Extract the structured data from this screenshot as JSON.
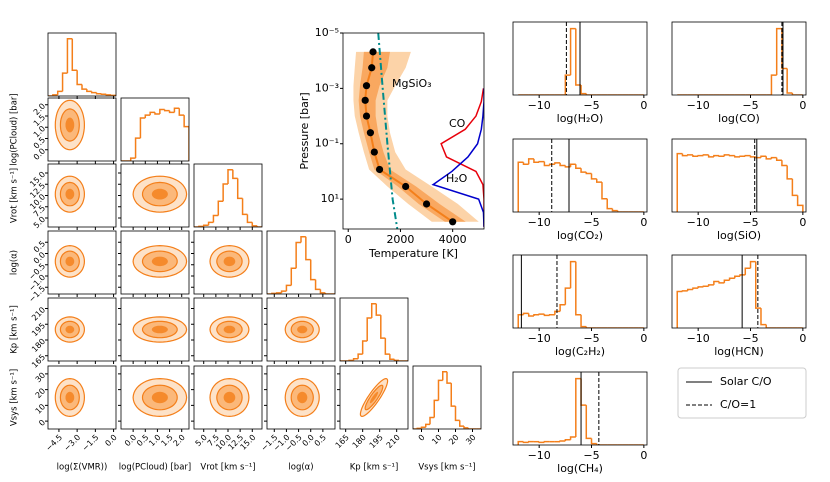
{
  "chart_data": [
    {
      "type": "corner",
      "hist_ylim": [
        0,
        110
      ],
      "contour_levels": [
        2.0,
        1.3,
        0.6
      ],
      "contour_colors": [
        "#fde2c8",
        "#fbb87a",
        "#f58a2c"
      ],
      "color": "#f47f1a",
      "correlations": [
        {
          "params": [
            4,
            5
          ],
          "value": 0.88
        }
      ],
      "params": [
        {
          "label": "log(Σ(VMR))",
          "lim": [
            -5.4,
            0.2
          ],
          "center": -3.6,
          "spread": 0.6,
          "ticks": [
            {
              "value": -4.5,
              "label": "−4.5"
            },
            {
              "value": -3.0,
              "label": "−3.0"
            },
            {
              "value": -1.5,
              "label": "−1.5"
            },
            {
              "value": 0.0,
              "label": "0.0"
            }
          ],
          "bins": [
            -5.4,
            -5.0,
            -4.6,
            -4.2,
            -3.8,
            -3.4,
            -3.0,
            -2.6,
            -2.2,
            -1.8,
            -1.4,
            -1.0,
            -0.6,
            -0.2,
            0.2
          ],
          "counts": [
            0,
            2,
            8,
            40,
            100,
            45,
            20,
            12,
            8,
            6,
            4,
            3,
            2,
            1
          ]
        },
        {
          "label": "log(PCloud) [bar]",
          "lim": [
            -0.5,
            2.3
          ],
          "center": 1.1,
          "spread": 0.55,
          "ticks": [
            {
              "value": 0.0,
              "label": "0.0"
            },
            {
              "value": 0.5,
              "label": "0.5"
            },
            {
              "value": 1.0,
              "label": "1.0"
            },
            {
              "value": 1.5,
              "label": "1.5"
            },
            {
              "value": 2.0,
              "label": "2.0"
            }
          ],
          "bins": [
            -0.5,
            -0.3,
            -0.1,
            0.1,
            0.3,
            0.5,
            0.7,
            0.9,
            1.1,
            1.3,
            1.5,
            1.7,
            1.9,
            2.1,
            2.3
          ],
          "counts": [
            0,
            0,
            5,
            40,
            75,
            80,
            85,
            82,
            90,
            88,
            85,
            92,
            80,
            60
          ]
        },
        {
          "label": "Vrot [km s⁻¹]",
          "lim": [
            3,
            17
          ],
          "center": 10.3,
          "spread": 2,
          "ticks": [
            {
              "value": 5.0,
              "label": "5.0"
            },
            {
              "value": 7.5,
              "label": "7.5"
            },
            {
              "value": 10.0,
              "label": "10.0"
            },
            {
              "value": 12.5,
              "label": "12.5"
            },
            {
              "value": 15.0,
              "label": "15.0"
            }
          ],
          "bins": [
            3,
            4,
            5,
            6,
            7,
            8,
            9,
            10,
            11,
            12,
            13,
            14,
            15,
            16,
            17
          ],
          "counts": [
            0,
            1,
            3,
            8,
            20,
            45,
            75,
            100,
            85,
            50,
            22,
            8,
            2,
            0
          ]
        },
        {
          "label": "log(α)",
          "lim": [
            -1.8,
            1.0
          ],
          "center": -0.35,
          "spread": 0.35,
          "ticks": [
            {
              "value": -1.5,
              "label": "−1.5"
            },
            {
              "value": -1.0,
              "label": "−1.0"
            },
            {
              "value": -0.5,
              "label": "−0.5"
            },
            {
              "value": 0.0,
              "label": "0.0"
            },
            {
              "value": 0.5,
              "label": "0.5"
            }
          ],
          "bins": [
            -1.8,
            -1.6,
            -1.4,
            -1.2,
            -1.0,
            -0.8,
            -0.6,
            -0.4,
            -0.2,
            0.0,
            0.2,
            0.4,
            0.6,
            0.8,
            1.0
          ],
          "counts": [
            0,
            1,
            2,
            5,
            15,
            45,
            90,
            100,
            60,
            25,
            8,
            2,
            0,
            0
          ]
        },
        {
          "label": "Kp [km s⁻¹]",
          "lim": [
            160,
            220
          ],
          "center": 190,
          "spread": 6,
          "ticks": [
            165,
            180,
            195,
            210
          ],
          "bins": [
            160,
            164,
            168,
            172,
            176,
            180,
            184,
            188,
            192,
            196,
            200,
            204,
            208,
            212,
            216,
            220
          ],
          "counts": [
            0,
            0,
            1,
            4,
            12,
            35,
            75,
            100,
            80,
            40,
            12,
            3,
            1,
            0,
            0
          ]
        },
        {
          "label": "Vsys [km s⁻¹]",
          "lim": [
            -5,
            35
          ],
          "center": 15,
          "spread": 6,
          "ticks": [
            0,
            10,
            20,
            30
          ],
          "bins": [
            -5,
            -2.5,
            0,
            2.5,
            5,
            7.5,
            10,
            12.5,
            15,
            17.5,
            20,
            22.5,
            25,
            27.5,
            30,
            32.5,
            35
          ],
          "counts": [
            0,
            1,
            3,
            8,
            20,
            50,
            85,
            100,
            80,
            40,
            15,
            5,
            2,
            0,
            0,
            0
          ]
        }
      ]
    },
    {
      "type": "profile",
      "xlabel": "Temperature [K]",
      "ylabel": "Pressure [bar]",
      "xlim": [
        -200,
        5200
      ],
      "xticks": [
        0,
        2000,
        4000
      ],
      "ylim": [
        1e-05,
        120
      ],
      "log_y": true,
      "yticks": [
        {
          "value": 1e-05,
          "label": "10⁻⁵"
        },
        {
          "value": 0.001,
          "label": "10⁻³"
        },
        {
          "value": 0.1,
          "label": "10⁻¹"
        },
        {
          "value": 10,
          "label": "10¹"
        }
      ],
      "pressure": [
        4.8e-05,
        0.00018,
        0.0008,
        0.0027,
        0.01,
        0.04,
        0.2,
        0.85,
        3.5,
        15,
        66
      ],
      "temperature": [
        950,
        900,
        700,
        650,
        700,
        850,
        1000,
        1200,
        2200,
        3000,
        4000
      ],
      "color": "#f47f1a",
      "bands": [
        {
          "lower": [
            300,
            250,
            200,
            200,
            250,
            400,
            600,
            800,
            1500,
            2300,
            3200
          ],
          "upper": [
            2400,
            2200,
            1800,
            1500,
            1500,
            1600,
            1800,
            2200,
            3200,
            4200,
            5000
          ],
          "color": "#fcd3a8"
        },
        {
          "lower": [
            600,
            550,
            450,
            400,
            450,
            600,
            800,
            1000,
            1900,
            2700,
            3700
          ],
          "upper": [
            1600,
            1500,
            1200,
            1050,
            1050,
            1150,
            1350,
            1600,
            2600,
            3500,
            4500
          ],
          "color": "#f9a860"
        }
      ],
      "condensation": {
        "name": "MgSiO₃",
        "color": "#008b8b",
        "pressure": [
          1e-05,
          0.001,
          0.1,
          10,
          120
        ],
        "temperature": [
          1150,
          1320,
          1500,
          1700,
          1880
        ]
      },
      "contribution_pressure": [
        0.001,
        0.003,
        0.01,
        0.03,
        0.1,
        0.3,
        1,
        3,
        10,
        30,
        100
      ],
      "contribution": [
        {
          "name": "CO",
          "color": "#e8000b",
          "values": [
            0.01,
            0.05,
            0.15,
            0.35,
            0.8,
            0.7,
            0.15,
            0.02,
            0,
            0,
            0
          ]
        },
        {
          "name": "H₂O",
          "color": "#0000cc",
          "values": [
            0,
            0,
            0.02,
            0.05,
            0.12,
            0.3,
            0.6,
            0.95,
            0.1,
            0.01,
            0
          ]
        }
      ]
    },
    {
      "type": "histogram",
      "xlabel": "log(H₂O)",
      "xlim": [
        -12.5,
        0.3
      ],
      "ylim": [
        0,
        1.1
      ],
      "color": "#f47f1a",
      "xticks": [
        {
          "value": -10,
          "label": "−10"
        },
        {
          "value": -5,
          "label": "−5"
        },
        0
      ],
      "bins": [
        -12,
        -11.5,
        -11,
        -10.5,
        -10,
        -9.5,
        -9,
        -8.5,
        -8,
        -7.5,
        -7,
        -6.5,
        -6,
        -5.5,
        -5,
        -4.5,
        -4,
        -3.5,
        -3,
        -2.5,
        -2,
        -1.5,
        -1,
        -0.5,
        0
      ],
      "counts": [
        0,
        0,
        0,
        0,
        0,
        0,
        0,
        0,
        0,
        0.3,
        1.0,
        0.15,
        0.02,
        0,
        0,
        0,
        0,
        0,
        0,
        0,
        0,
        0,
        0,
        0
      ],
      "reference_lines": [
        -6.1,
        -7.4
      ]
    },
    {
      "type": "histogram",
      "xlabel": "log(CO)",
      "xlim": [
        -12.5,
        0.3
      ],
      "ylim": [
        0,
        1.1
      ],
      "color": "#f47f1a",
      "xticks": [
        {
          "value": -10,
          "label": "−10"
        },
        {
          "value": -5,
          "label": "−5"
        },
        0
      ],
      "bins": [
        -12,
        -11.5,
        -11,
        -10.5,
        -10,
        -9.5,
        -9,
        -8.5,
        -8,
        -7.5,
        -7,
        -6.5,
        -6,
        -5.5,
        -5,
        -4.5,
        -4,
        -3.5,
        -3,
        -2.5,
        -2,
        -1.5,
        -1,
        -0.5,
        0
      ],
      "counts": [
        0,
        0,
        0,
        0,
        0,
        0,
        0,
        0,
        0,
        0,
        0,
        0,
        0,
        0,
        0,
        0,
        0,
        0,
        0.3,
        1.0,
        0.4,
        0.03,
        0,
        0
      ],
      "reference_lines": [
        -1.9,
        -2.0
      ]
    },
    {
      "type": "histogram",
      "xlabel": "log(CO₂)",
      "xlim": [
        -12.5,
        0.3
      ],
      "ylim": [
        0,
        1.1
      ],
      "color": "#f47f1a",
      "xticks": [
        {
          "value": -10,
          "label": "−10"
        },
        {
          "value": -5,
          "label": "−5"
        },
        0
      ],
      "bins": [
        -12,
        -11.5,
        -11,
        -10.5,
        -10,
        -9.5,
        -9,
        -8.5,
        -8,
        -7.5,
        -7,
        -6.5,
        -6,
        -5.5,
        -5,
        -4.5,
        -4,
        -3.5,
        -3,
        -2.5,
        -2,
        -1.5,
        -1,
        -0.5,
        0
      ],
      "counts": [
        0.75,
        0.72,
        0.8,
        0.75,
        0.76,
        0.7,
        0.72,
        0.74,
        0.7,
        0.68,
        0.72,
        0.66,
        0.6,
        0.58,
        0.5,
        0.45,
        0.2,
        0.05,
        0.02,
        0,
        0,
        0,
        0,
        0
      ],
      "reference_lines": [
        -7.15,
        -8.8
      ]
    },
    {
      "type": "histogram",
      "xlabel": "log(SiO)",
      "xlim": [
        -12.5,
        0.3
      ],
      "ylim": [
        0,
        1.1
      ],
      "color": "#f47f1a",
      "xticks": [
        {
          "value": -10,
          "label": "−10"
        },
        {
          "value": -5,
          "label": "−5"
        },
        0
      ],
      "bins": [
        -12,
        -11.5,
        -11,
        -10.5,
        -10,
        -9.5,
        -9,
        -8.5,
        -8,
        -7.5,
        -7,
        -6.5,
        -6,
        -5.5,
        -5,
        -4.5,
        -4,
        -3.5,
        -3,
        -2.5,
        -2,
        -1.5,
        -1,
        -0.5,
        0
      ],
      "counts": [
        0.88,
        0.85,
        0.86,
        0.84,
        0.85,
        0.86,
        0.83,
        0.85,
        0.84,
        0.86,
        0.85,
        0.83,
        0.84,
        0.85,
        0.83,
        0.82,
        0.84,
        0.8,
        0.82,
        0.78,
        0.7,
        0.5,
        0.25,
        0.1
      ],
      "reference_lines": [
        -4.4,
        -4.6
      ]
    },
    {
      "type": "histogram",
      "xlabel": "log(C₂H₂)",
      "xlim": [
        -12.5,
        0.3
      ],
      "ylim": [
        0,
        1.1
      ],
      "color": "#f47f1a",
      "xticks": [
        {
          "value": -10,
          "label": "−10"
        },
        {
          "value": -5,
          "label": "−5"
        },
        0
      ],
      "bins": [
        -12,
        -11.5,
        -11,
        -10.5,
        -10,
        -9.5,
        -9,
        -8.5,
        -8,
        -7.5,
        -7,
        -6.5,
        -6,
        -5.5,
        -5,
        -4.5,
        -4,
        -3.5,
        -3,
        -2.5,
        -2,
        -1.5,
        -1,
        -0.5,
        0
      ],
      "counts": [
        0.2,
        0.22,
        0.18,
        0.2,
        0.21,
        0.19,
        0.2,
        0.25,
        0.35,
        0.6,
        1.0,
        0.2,
        0.02,
        0,
        0,
        0,
        0,
        0,
        0,
        0,
        0,
        0,
        0,
        0
      ],
      "reference_lines": [
        -11.7,
        -8.3
      ]
    },
    {
      "type": "histogram",
      "xlabel": "log(HCN)",
      "xlim": [
        -12.5,
        0.3
      ],
      "ylim": [
        0,
        1.1
      ],
      "color": "#f47f1a",
      "xticks": [
        {
          "value": -10,
          "label": "−10"
        },
        {
          "value": -5,
          "label": "−5"
        },
        0
      ],
      "bins": [
        -12,
        -11.5,
        -11,
        -10.5,
        -10,
        -9.5,
        -9,
        -8.5,
        -8,
        -7.5,
        -7,
        -6.5,
        -6,
        -5.5,
        -5,
        -4.5,
        -4,
        -3.5,
        -3,
        -2.5,
        -2,
        -1.5,
        -1,
        -0.5,
        0
      ],
      "counts": [
        0.55,
        0.56,
        0.58,
        0.6,
        0.62,
        0.63,
        0.65,
        0.7,
        0.68,
        0.72,
        0.75,
        0.78,
        0.8,
        0.9,
        1.0,
        0.3,
        0.05,
        0,
        0,
        0,
        0,
        0,
        0,
        0
      ],
      "reference_lines": [
        -5.8,
        -4.3
      ]
    },
    {
      "type": "histogram",
      "xlabel": "log(CH₄)",
      "xlim": [
        -12.5,
        0.3
      ],
      "ylim": [
        0,
        1.1
      ],
      "color": "#f47f1a",
      "xticks": [
        {
          "value": -10,
          "label": "−10"
        },
        {
          "value": -5,
          "label": "−5"
        },
        0
      ],
      "bins": [
        -12,
        -11.5,
        -11,
        -10.5,
        -10,
        -9.5,
        -9,
        -8.5,
        -8,
        -7.5,
        -7,
        -6.5,
        -6,
        -5.5,
        -5,
        -4.5,
        -4,
        -3.5,
        -3,
        -2.5,
        -2,
        -1.5,
        -1,
        -0.5,
        0
      ],
      "counts": [
        0.05,
        0.04,
        0.05,
        0.05,
        0.04,
        0.05,
        0.05,
        0.05,
        0.06,
        0.08,
        0.12,
        1.0,
        0.6,
        0.1,
        0.02,
        0,
        0,
        0,
        0,
        0,
        0,
        0,
        0,
        0
      ],
      "reference_lines": [
        -6.0,
        -4.3
      ]
    }
  ],
  "legend": {
    "entries": [
      {
        "label": "Solar C/O",
        "dash": "solid"
      },
      {
        "label": "C/O=1",
        "dash": "dashed"
      }
    ]
  }
}
